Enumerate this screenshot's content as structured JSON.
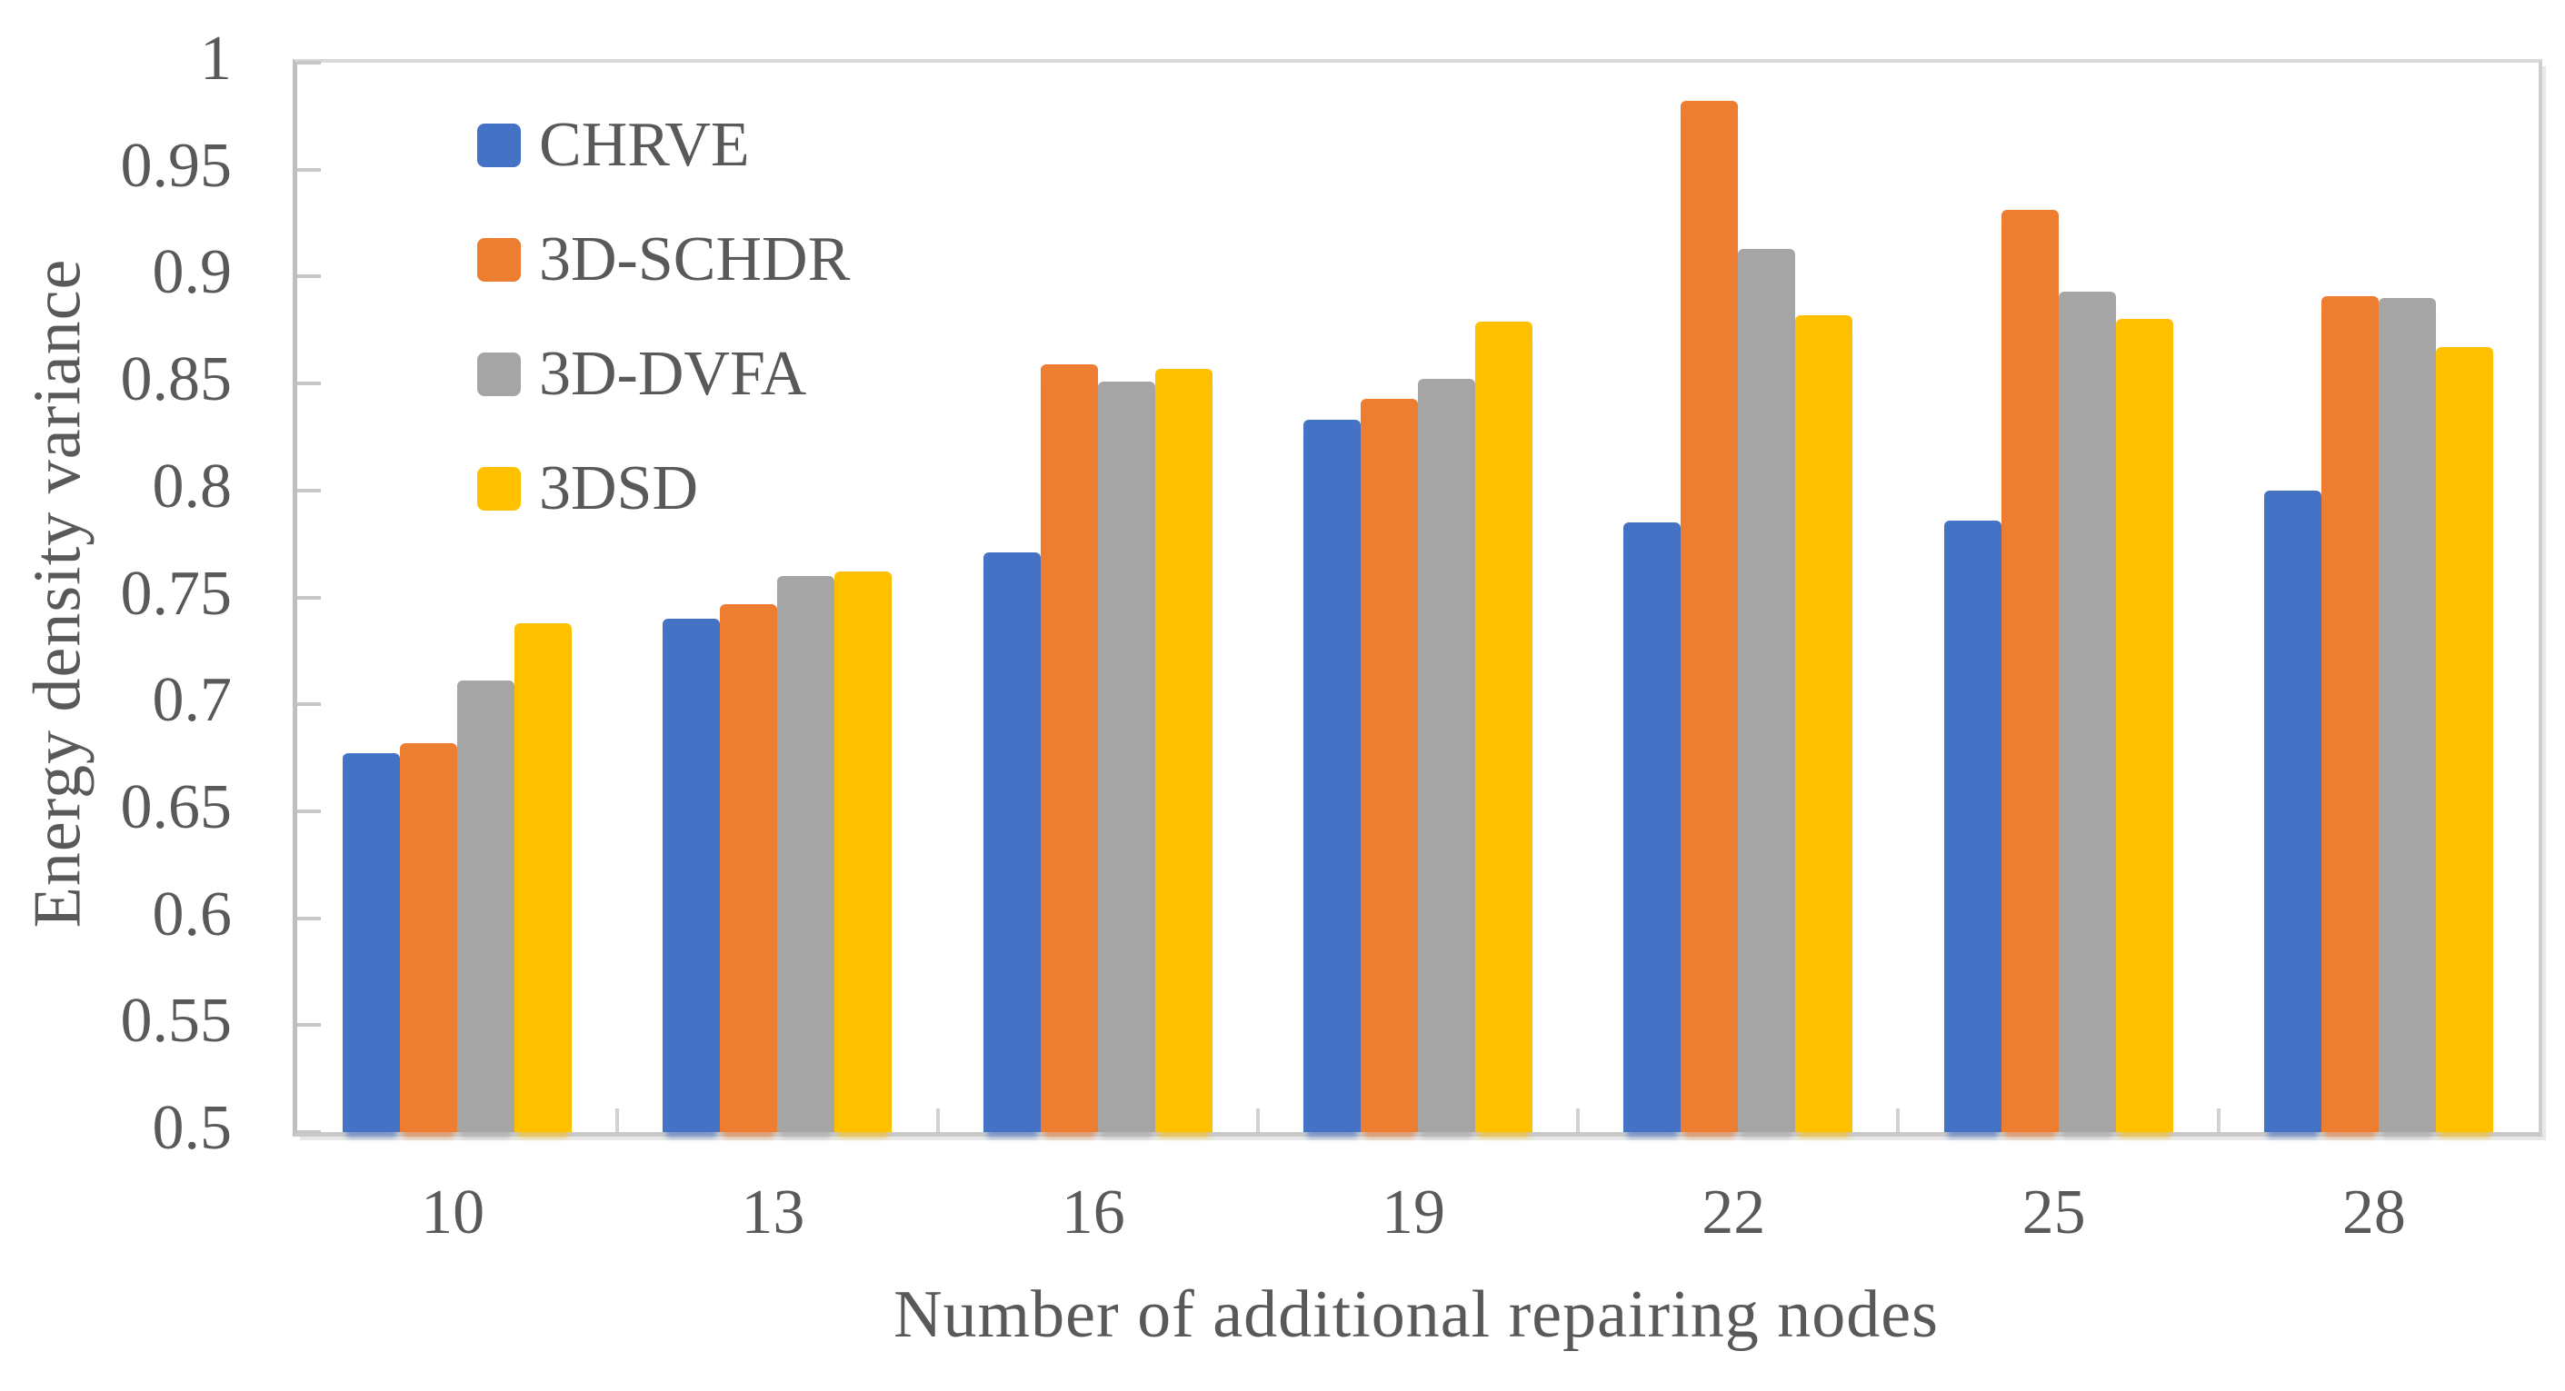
{
  "chart_data": {
    "type": "bar",
    "title": "",
    "xlabel": "Number of additional repairing nodes",
    "ylabel": "Energy density variance",
    "categories": [
      "10",
      "13",
      "16",
      "19",
      "22",
      "25",
      "28"
    ],
    "series": [
      {
        "name": "CHRVE",
        "color": "#4472C4",
        "values": [
          0.677,
          0.74,
          0.771,
          0.833,
          0.785,
          0.786,
          0.8
        ]
      },
      {
        "name": "3D-SCHDR",
        "color": "#ED7D31",
        "values": [
          0.682,
          0.747,
          0.859,
          0.843,
          0.982,
          0.931,
          0.891
        ]
      },
      {
        "name": "3D-DVFA",
        "color": "#A5A5A5",
        "values": [
          0.711,
          0.76,
          0.851,
          0.852,
          0.913,
          0.893,
          0.89
        ]
      },
      {
        "name": "3DSD",
        "color": "#FFC000",
        "values": [
          0.738,
          0.762,
          0.857,
          0.879,
          0.882,
          0.88,
          0.867
        ]
      }
    ],
    "ylim": [
      0.5,
      1.0
    ],
    "ytick_step": 0.05,
    "ytick_labels": [
      "1",
      "0.95",
      "0.9",
      "0.85",
      "0.8",
      "0.75",
      "0.7",
      "0.65",
      "0.6",
      "0.55",
      "0.5"
    ],
    "legend_position": "inside-top-left",
    "grid": false
  },
  "style": {
    "axis_color": "#BFBFBF",
    "border_color": "#D9D9D9",
    "tick_color": "#C6C6C6",
    "text_color": "#595959",
    "background": "#FFFFFF"
  }
}
